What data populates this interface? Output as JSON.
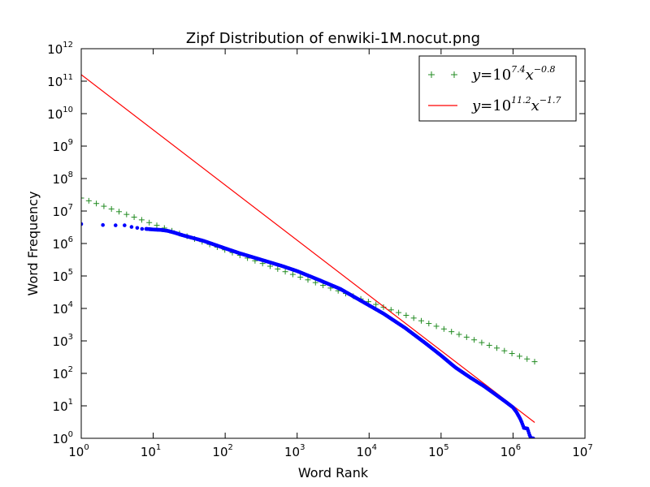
{
  "chart_data": {
    "type": "scatter",
    "title": "Zipf Distribution of enwiki-1M.nocut.png",
    "xlabel": "Word Rank",
    "ylabel": "Word Frequency",
    "xscale": "log",
    "yscale": "log",
    "xlim_exp": [
      0,
      7
    ],
    "ylim_exp": [
      0,
      12
    ],
    "x_ticks": [
      {
        "base": "10",
        "exp": "0"
      },
      {
        "base": "10",
        "exp": "1"
      },
      {
        "base": "10",
        "exp": "2"
      },
      {
        "base": "10",
        "exp": "3"
      },
      {
        "base": "10",
        "exp": "4"
      },
      {
        "base": "10",
        "exp": "5"
      },
      {
        "base": "10",
        "exp": "6"
      },
      {
        "base": "10",
        "exp": "7"
      }
    ],
    "y_ticks": [
      {
        "base": "10",
        "exp": "0"
      },
      {
        "base": "10",
        "exp": "1"
      },
      {
        "base": "10",
        "exp": "2"
      },
      {
        "base": "10",
        "exp": "3"
      },
      {
        "base": "10",
        "exp": "4"
      },
      {
        "base": "10",
        "exp": "5"
      },
      {
        "base": "10",
        "exp": "6"
      },
      {
        "base": "10",
        "exp": "7"
      },
      {
        "base": "10",
        "exp": "8"
      },
      {
        "base": "10",
        "exp": "9"
      },
      {
        "base": "10",
        "exp": "10"
      },
      {
        "base": "10",
        "exp": "11"
      },
      {
        "base": "10",
        "exp": "12"
      }
    ],
    "grid": false,
    "legend_position": "top-right",
    "legend": [
      {
        "lhs": "y",
        "eq": "=10",
        "exp": "7.4",
        "var": "x",
        "xexp": "−0.8",
        "marker": "plus",
        "color": "#228b22"
      },
      {
        "lhs": "y",
        "eq": "=10",
        "exp": "11.2",
        "var": "x",
        "xexp": "−1.7",
        "marker": "line",
        "color": "#ff0000"
      }
    ],
    "series": [
      {
        "kind": "fit-plus",
        "color": "#228b22",
        "intercept_log10": 7.4,
        "slope": -0.8,
        "x_range": [
          1,
          2000000
        ]
      },
      {
        "kind": "fit-line",
        "color": "#ff0000",
        "intercept_log10": 11.2,
        "slope": -1.7,
        "x_range": [
          1,
          2000000
        ]
      },
      {
        "kind": "observed",
        "color": "#0000ff",
        "points_log10": [
          [
            0,
            6.6
          ],
          [
            0.301,
            6.57
          ],
          [
            0.477,
            6.56
          ],
          [
            0.602,
            6.56
          ],
          [
            0.699,
            6.51
          ],
          [
            0.778,
            6.48
          ],
          [
            0.845,
            6.45
          ],
          [
            0.903,
            6.45
          ],
          [
            0.954,
            6.44
          ],
          [
            1.0,
            6.43
          ],
          [
            1.1,
            6.42
          ],
          [
            1.2,
            6.39
          ],
          [
            1.3,
            6.33
          ],
          [
            1.4,
            6.26
          ],
          [
            1.5,
            6.2
          ],
          [
            1.7,
            6.08
          ],
          [
            2.0,
            5.85
          ],
          [
            2.2,
            5.7
          ],
          [
            2.5,
            5.5
          ],
          [
            2.8,
            5.3
          ],
          [
            3.0,
            5.15
          ],
          [
            3.3,
            4.88
          ],
          [
            3.6,
            4.6
          ],
          [
            3.9,
            4.22
          ],
          [
            4.2,
            3.84
          ],
          [
            4.5,
            3.4
          ],
          [
            4.8,
            2.9
          ],
          [
            5.0,
            2.55
          ],
          [
            5.2,
            2.18
          ],
          [
            5.4,
            1.88
          ],
          [
            5.6,
            1.6
          ],
          [
            5.8,
            1.28
          ],
          [
            5.9,
            1.12
          ],
          [
            6.0,
            0.95
          ],
          [
            6.05,
            0.8
          ],
          [
            6.1,
            0.6
          ],
          [
            6.12,
            0.5
          ],
          [
            6.15,
            0.32
          ],
          [
            6.2,
            0.3
          ],
          [
            6.23,
            0.1
          ],
          [
            6.25,
            0.0
          ],
          [
            6.28,
            0.0
          ]
        ]
      }
    ]
  }
}
